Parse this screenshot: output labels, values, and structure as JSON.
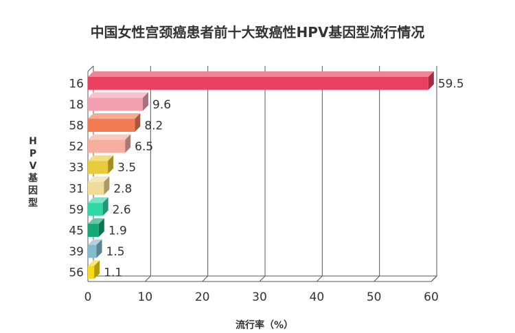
{
  "chart_data": {
    "type": "bar",
    "orientation": "horizontal",
    "title": "中国女性宫颈癌患者前十大致癌性HPV基因型流行情况",
    "xlabel": "流行率（%）",
    "ylabel": "HPV基因型",
    "categories": [
      "16",
      "18",
      "58",
      "52",
      "33",
      "31",
      "59",
      "45",
      "39",
      "56"
    ],
    "values": [
      59.5,
      9.6,
      8.2,
      6.5,
      3.5,
      2.8,
      2.6,
      1.9,
      1.5,
      1.1
    ],
    "value_labels": [
      "59.5",
      "9.6",
      "8.2",
      "6.5",
      "3.5",
      "2.8",
      "2.6",
      "1.9",
      "1.5",
      "1.1"
    ],
    "xlim": [
      0,
      60
    ],
    "xticks": [
      "0",
      "10",
      "20",
      "30",
      "40",
      "50",
      "60"
    ],
    "grid": true,
    "legend": "none",
    "bar_colors": [
      "#e8405e",
      "#f4a0b0",
      "#f47c54",
      "#f7ae9e",
      "#e8cc3c",
      "#f0dc98",
      "#30d8a8",
      "#14a874",
      "#84bccc",
      "#f4dc1c"
    ]
  }
}
